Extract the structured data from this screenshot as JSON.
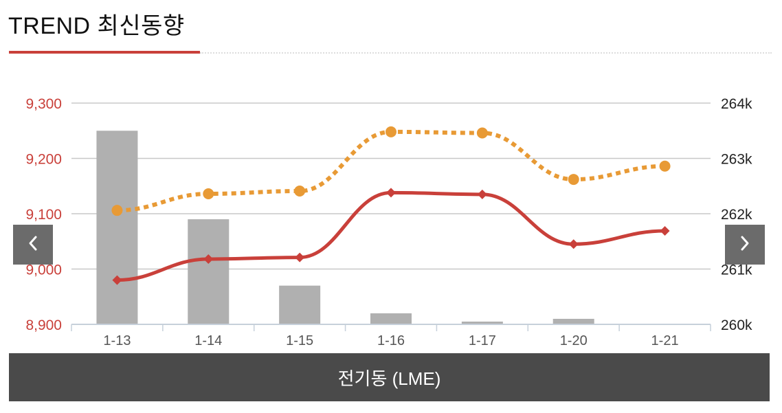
{
  "header": {
    "title": "TREND 최신동향"
  },
  "navigation": {
    "prev_icon": "chevron-left-icon",
    "next_icon": "chevron-right-icon"
  },
  "footer": {
    "label": "전기동 (LME)"
  },
  "colors": {
    "accent": "#c9403a",
    "line": "#c9403a",
    "dotted_line": "#e89a35",
    "bars": "#b0b0b0",
    "footer_bg": "#4a4a4a"
  },
  "chart_data": {
    "type": "bar",
    "categories": [
      "1-13",
      "1-14",
      "1-15",
      "1-16",
      "1-17",
      "1-20",
      "1-21"
    ],
    "y_left": {
      "ylim": [
        8900,
        9300
      ],
      "ticks": [
        "9,300",
        "9,200",
        "9,100",
        "9,000",
        "8,900"
      ],
      "tick_values": [
        9300,
        9200,
        9100,
        9000,
        8900
      ]
    },
    "y_right": {
      "ylim": [
        260000,
        264000
      ],
      "ticks": [
        "264k",
        "263k",
        "262k",
        "261k",
        "260k"
      ],
      "tick_values": [
        264000,
        263000,
        262000,
        261000,
        260000
      ]
    },
    "grid": true,
    "series": [
      {
        "type": "bar",
        "axis": "right",
        "color": "#b0b0b0",
        "values": [
          263500,
          261900,
          260700,
          260200,
          260050,
          260100,
          260000
        ]
      },
      {
        "type": "line",
        "axis": "left",
        "color": "#c9403a",
        "marker": "diamond",
        "values": [
          8980,
          9018,
          9021,
          9138,
          9135,
          9045,
          9069
        ]
      },
      {
        "type": "line",
        "axis": "left",
        "color": "#e89a35",
        "marker": "circle",
        "dotted": true,
        "values": [
          9106,
          9136,
          9141,
          9248,
          9246,
          9162,
          9186
        ]
      }
    ]
  }
}
